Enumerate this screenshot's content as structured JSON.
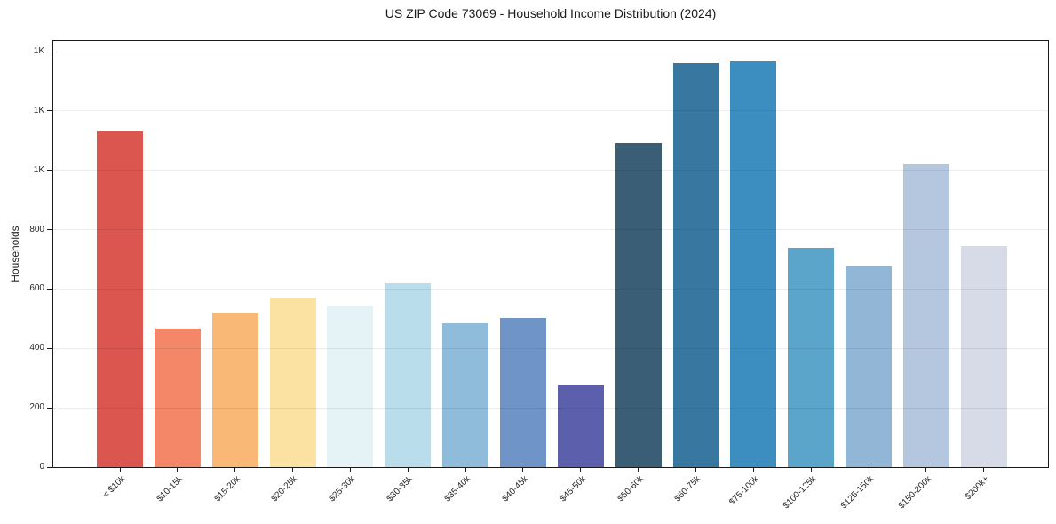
{
  "chart_data": {
    "type": "bar",
    "title": "US ZIP Code 73069 - Household Income Distribution (2024)",
    "xlabel": "",
    "ylabel": "Households",
    "categories": [
      "< $10k",
      "$10-15k",
      "$15-20k",
      "$20-25k",
      "$25-30k",
      "$30-35k",
      "$35-40k",
      "$40-45k",
      "$45-50k",
      "$50-60k",
      "$60-75k",
      "$75-100k",
      "$100-125k",
      "$125-150k",
      "$150-200k",
      "$200k+"
    ],
    "values": [
      1130,
      468,
      522,
      572,
      546,
      620,
      486,
      502,
      274,
      1092,
      1362,
      1368,
      740,
      675,
      1020,
      744
    ],
    "bar_colors": [
      "#db564f",
      "#f38768",
      "#f9b876",
      "#fce2a2",
      "#e5f3f6",
      "#b9ddeb",
      "#90bcdc",
      "#6e94c8",
      "#5c5fac",
      "#3a5e76",
      "#3878a0",
      "#3d8ec0",
      "#5ba4ca",
      "#92b6d5",
      "#b5c7de",
      "#d7dae7"
    ],
    "ylim": [
      0,
      1436
    ],
    "y_ticks": [
      {
        "value": 0,
        "label": "0"
      },
      {
        "value": 200,
        "label": "200"
      },
      {
        "value": 400,
        "label": "400"
      },
      {
        "value": 600,
        "label": "600"
      },
      {
        "value": 800,
        "label": "800"
      },
      {
        "value": 1000,
        "label": "1K"
      },
      {
        "value": 1200,
        "label": "1K"
      },
      {
        "value": 1400,
        "label": "1K"
      }
    ],
    "grid": "horizontal",
    "legend_position": "none",
    "x_tick_rotation_deg": 45
  }
}
